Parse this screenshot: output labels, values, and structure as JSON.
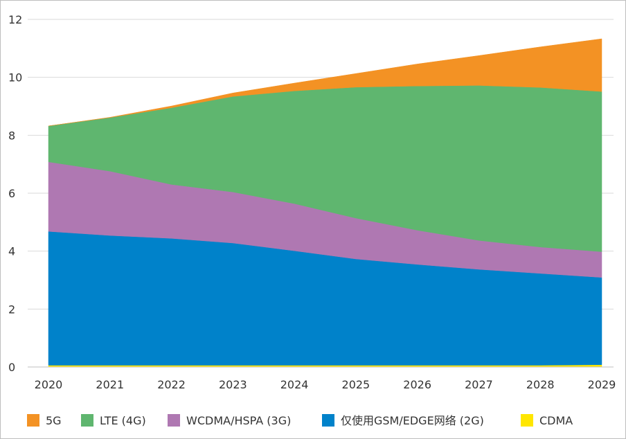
{
  "chart_data": {
    "type": "area",
    "stacked": true,
    "x": [
      "2020",
      "2021",
      "2022",
      "2023",
      "2024",
      "2025",
      "2026",
      "2027",
      "2028",
      "2029"
    ],
    "ylim": [
      0,
      12
    ],
    "yticks": [
      "0",
      "2",
      "4",
      "6",
      "8",
      "10",
      "12"
    ],
    "grid": "horizontal",
    "legend_position": "bottom",
    "series": [
      {
        "name": "CDMA",
        "color": "#ffe600",
        "values": [
          0.06,
          0.06,
          0.06,
          0.06,
          0.06,
          0.06,
          0.06,
          0.06,
          0.06,
          0.08
        ]
      },
      {
        "name": "仅使用GSM/EDGE网络 (2G)",
        "color": "#0082ca",
        "values": [
          4.62,
          4.48,
          4.38,
          4.22,
          3.95,
          3.67,
          3.48,
          3.31,
          3.17,
          3.01
        ]
      },
      {
        "name": "WCDMA/HSPA (3G)",
        "color": "#af78b2",
        "values": [
          2.4,
          2.22,
          1.86,
          1.76,
          1.63,
          1.41,
          1.18,
          1.0,
          0.91,
          0.89
        ]
      },
      {
        "name": "LTE (4G)",
        "color": "#5fb66f",
        "values": [
          1.24,
          1.85,
          2.65,
          3.3,
          3.89,
          4.52,
          4.98,
          5.35,
          5.51,
          5.53
        ]
      },
      {
        "name": "5G",
        "color": "#f39224",
        "values": [
          0,
          0.01,
          0.06,
          0.12,
          0.27,
          0.47,
          0.76,
          1.03,
          1.4,
          1.82
        ]
      }
    ]
  },
  "legend": [
    {
      "label": "5G",
      "color": "#f39224"
    },
    {
      "label": "LTE (4G)",
      "color": "#5fb66f"
    },
    {
      "label": "WCDMA/HSPA (3G)",
      "color": "#af78b2"
    },
    {
      "label": "仅使用GSM/EDGE网络 (2G)",
      "color": "#0082ca"
    },
    {
      "label": "CDMA",
      "color": "#ffe600"
    }
  ]
}
